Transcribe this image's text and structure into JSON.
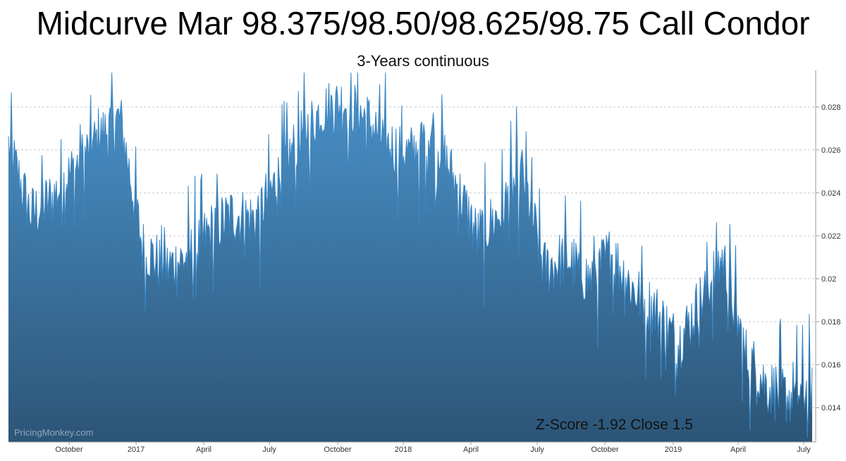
{
  "chart_data": {
    "type": "area",
    "title": "Midcurve Mar 98.375/98.50/98.625/98.75 Call Condor",
    "subtitle": "3-Years continuous",
    "annotation": "Z-Score -1.92 Close 1.5",
    "watermark": "PricingMonkey.com",
    "xlabel": "",
    "ylabel": "",
    "x_tick_labels": [
      "October",
      "2017",
      "April",
      "July",
      "October",
      "2018",
      "April",
      "July",
      "October",
      "2019",
      "April",
      "July"
    ],
    "y_ticks": [
      0.014,
      0.016,
      0.018,
      0.02,
      0.022,
      0.024,
      0.026,
      0.028
    ],
    "y_tick_labels": [
      "0.014",
      "0.016",
      "0.018",
      "0.02",
      "0.022",
      "0.024",
      "0.026",
      "0.028"
    ],
    "ylim": [
      0.0124,
      0.0297
    ],
    "grid": "horizontal dashed",
    "colors": {
      "fill_top": "#4b93cb",
      "fill_bottom": "#2c5577",
      "line": "#3a86c4",
      "grid": "#c8c8c8"
    },
    "series": [
      {
        "x": [
          "2016-07",
          "2016-08",
          "2016-09",
          "2016-10",
          "2016-11",
          "2016-12",
          "2017-01",
          "2017-02",
          "2017-03",
          "2017-04",
          "2017-05",
          "2017-06",
          "2017-07",
          "2017-08",
          "2017-09",
          "2017-10",
          "2017-11",
          "2017-12",
          "2018-01",
          "2018-02",
          "2018-03",
          "2018-04",
          "2018-05",
          "2018-06",
          "2018-07",
          "2018-08",
          "2018-09",
          "2018-10",
          "2018-11",
          "2018-12",
          "2019-01",
          "2019-02",
          "2019-03",
          "2019-04",
          "2019-05",
          "2019-06",
          "2019-07"
        ],
        "values": [
          0.0262,
          0.023,
          0.0238,
          0.0252,
          0.0265,
          0.0275,
          0.0215,
          0.0205,
          0.021,
          0.0222,
          0.023,
          0.0228,
          0.0245,
          0.0265,
          0.0278,
          0.0282,
          0.0275,
          0.0262,
          0.0258,
          0.027,
          0.0245,
          0.022,
          0.023,
          0.025,
          0.0205,
          0.021,
          0.02,
          0.0212,
          0.0195,
          0.0185,
          0.017,
          0.019,
          0.021,
          0.0165,
          0.015,
          0.0145,
          0.015
        ]
      }
    ]
  }
}
